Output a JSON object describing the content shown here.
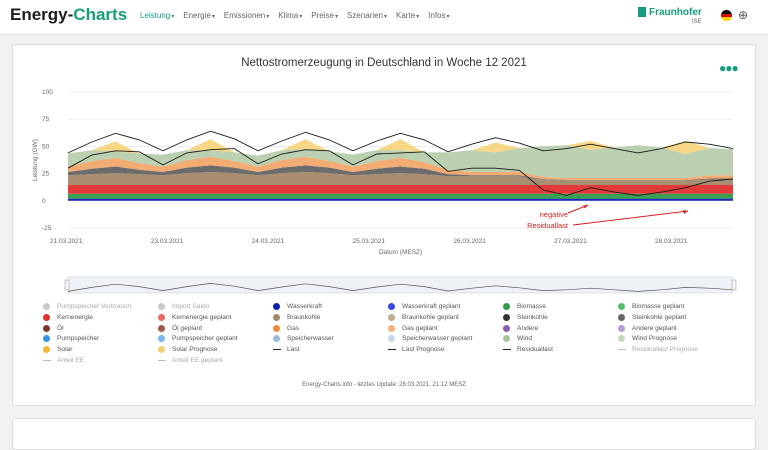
{
  "nav": {
    "brand_main": "Energy-",
    "brand_accent": "Charts",
    "items": [
      {
        "label": "Leistung",
        "active": true
      },
      {
        "label": "Energie",
        "active": false
      },
      {
        "label": "Emissionen",
        "active": false
      },
      {
        "label": "Klima",
        "active": false
      },
      {
        "label": "Preise",
        "active": false
      },
      {
        "label": "Szenarien",
        "active": false
      },
      {
        "label": "Karte",
        "active": false
      },
      {
        "label": "Infos",
        "active": false
      }
    ],
    "fraunhofer": "Fraunhofer",
    "fraunhofer_sub": "ISE",
    "accent_color": "#179c7d"
  },
  "footer_note": "Energy-Charts.info - letztes Update: 28.03.2021, 21:12 MESZ",
  "chart_data": {
    "type": "area",
    "title": "Nettostromerzeugung in Deutschland in Woche 12 2021",
    "xlabel": "Datum (MESZ)",
    "ylabel": "Leistung (GW)",
    "ylim": [
      -25,
      100
    ],
    "yticks": [
      -25,
      0,
      25,
      50,
      75,
      100
    ],
    "xticks": [
      "21.03.2021",
      "23.03.2021",
      "24.03.2021",
      "25.03.2021",
      "26.03.2021",
      "27.03.2021",
      "28.03.2021"
    ],
    "x_hours": [
      0,
      6,
      12,
      18,
      24,
      30,
      36,
      42,
      48,
      54,
      60,
      66,
      72,
      78,
      84,
      90,
      96,
      102,
      108,
      114,
      120,
      126,
      132,
      138,
      144,
      150,
      156,
      162,
      168
    ],
    "stacked_series": [
      {
        "name": "Wasserkraft",
        "color": "#0d1fb8",
        "values": [
          2,
          2,
          2,
          2,
          2,
          2,
          2,
          2,
          2,
          2,
          2,
          2,
          2,
          2,
          2,
          2,
          2,
          2,
          2,
          2,
          2,
          2,
          2,
          2,
          2,
          2,
          2,
          2,
          2
        ]
      },
      {
        "name": "Biomasse",
        "color": "#2e9a49",
        "values": [
          4.5,
          4.5,
          4.5,
          4.5,
          4.5,
          4.5,
          4.5,
          4.5,
          4.5,
          4.5,
          4.5,
          4.5,
          4.5,
          4.5,
          4.5,
          4.5,
          4.5,
          4.5,
          4.5,
          4.5,
          4.5,
          4.5,
          4.5,
          4.5,
          4.5,
          4.5,
          4.5,
          4.5,
          4.5
        ]
      },
      {
        "name": "Kernenergie",
        "color": "#e0302e",
        "values": [
          8,
          8,
          8,
          8,
          8,
          8,
          8,
          8,
          8,
          8,
          8,
          8,
          8,
          8,
          8,
          8,
          8,
          8,
          8,
          8,
          8,
          8,
          8,
          8,
          8,
          8,
          8,
          8,
          8
        ]
      },
      {
        "name": "Braunkohle",
        "color": "#a48869",
        "values": [
          9,
          10,
          11,
          10,
          9,
          11,
          12,
          11,
          9,
          11,
          12,
          11,
          9,
          10,
          11,
          10,
          8,
          8,
          8,
          8,
          5,
          4,
          4,
          4,
          4,
          4,
          4,
          5,
          5
        ]
      },
      {
        "name": "Steinkohle",
        "color": "#646464",
        "values": [
          3,
          5,
          6,
          4,
          3,
          5,
          6,
          5,
          3,
          5,
          6,
          5,
          3,
          5,
          6,
          5,
          2,
          1,
          1,
          1,
          0.5,
          0.5,
          0.5,
          0.5,
          0.5,
          0.5,
          0.5,
          1,
          1
        ]
      },
      {
        "name": "Gas",
        "color": "#f1a66a",
        "values": [
          5,
          7,
          8,
          6,
          5,
          7,
          8,
          6,
          5,
          7,
          8,
          6,
          5,
          7,
          8,
          6,
          4,
          3,
          3,
          3,
          2,
          2,
          2,
          2,
          2,
          2,
          2,
          3,
          3
        ]
      },
      {
        "name": "Wind",
        "color": "#b7ccad",
        "values": [
          12,
          10,
          6,
          9,
          11,
          9,
          6,
          8,
          10,
          9,
          7,
          9,
          11,
          10,
          7,
          9,
          16,
          20,
          18,
          22,
          28,
          30,
          26,
          28,
          30,
          28,
          22,
          25,
          24
        ]
      },
      {
        "name": "Solar",
        "color": "#f7d57e",
        "values": [
          0,
          0,
          9,
          0,
          0,
          0,
          10,
          0,
          0,
          0,
          9,
          0,
          0,
          0,
          10,
          0,
          0,
          0,
          9,
          0,
          0,
          0,
          8,
          0,
          0,
          0,
          12,
          0,
          0
        ]
      }
    ],
    "lines": [
      {
        "name": "Last",
        "color": "#1a1a1a",
        "values": [
          44,
          54,
          62,
          56,
          46,
          56,
          64,
          57,
          46,
          55,
          63,
          56,
          46,
          55,
          62,
          56,
          45,
          52,
          58,
          53,
          46,
          48,
          52,
          48,
          44,
          48,
          54,
          52,
          48
        ]
      },
      {
        "name": "Residuallast",
        "color": "#1a1a1a",
        "values": [
          30,
          42,
          46,
          45,
          33,
          44,
          47,
          48,
          34,
          43,
          47,
          46,
          33,
          43,
          44,
          45,
          27,
          30,
          30,
          28,
          10,
          5,
          12,
          8,
          5,
          8,
          12,
          18,
          20
        ]
      }
    ],
    "legend": [
      {
        "name": "Pumpspeicher Verbrauch",
        "color": "#c8c8c8",
        "kind": "dot",
        "faded": true
      },
      {
        "name": "Import Saldo",
        "color": "#c8c8c8",
        "kind": "dot",
        "faded": true
      },
      {
        "name": "Wasserkraft",
        "color": "#0d1fb8",
        "kind": "dot",
        "faded": false
      },
      {
        "name": "Wasserkraft geplant",
        "color": "#3b47e0",
        "kind": "dot",
        "faded": false
      },
      {
        "name": "Biomasse",
        "color": "#2e9a49",
        "kind": "dot",
        "faded": false
      },
      {
        "name": "Biomasse geplant",
        "color": "#55bb6a",
        "kind": "dot",
        "faded": false
      },
      {
        "name": "Kernenergie",
        "color": "#e0302e",
        "kind": "dot",
        "faded": false
      },
      {
        "name": "Kernenergie geplant",
        "color": "#ea6a63",
        "kind": "dot",
        "faded": false
      },
      {
        "name": "Braunkohle",
        "color": "#a48869",
        "kind": "dot",
        "faded": false
      },
      {
        "name": "Braunkohle geplant",
        "color": "#c2aa8a",
        "kind": "dot",
        "faded": false
      },
      {
        "name": "Steinkohle",
        "color": "#333333",
        "kind": "dot",
        "faded": false
      },
      {
        "name": "Steinkohle geplant",
        "color": "#666666",
        "kind": "dot",
        "faded": false
      },
      {
        "name": "Öl",
        "color": "#7b3a2a",
        "kind": "dot",
        "faded": false
      },
      {
        "name": "Öl geplant",
        "color": "#9e5a48",
        "kind": "dot",
        "faded": false
      },
      {
        "name": "Gas",
        "color": "#f18a3a",
        "kind": "dot",
        "faded": false
      },
      {
        "name": "Gas geplant",
        "color": "#f3b17a",
        "kind": "dot",
        "faded": false
      },
      {
        "name": "Andere",
        "color": "#8a5db3",
        "kind": "dot",
        "faded": false
      },
      {
        "name": "Andere geplant",
        "color": "#b79bd6",
        "kind": "dot",
        "faded": false
      },
      {
        "name": "Pumpspeicher",
        "color": "#3794e8",
        "kind": "dot",
        "faded": false
      },
      {
        "name": "Pumpspeicher geplant",
        "color": "#78b8f0",
        "kind": "dot",
        "faded": false
      },
      {
        "name": "Speicherwasser",
        "color": "#9fb9e6",
        "kind": "dot",
        "faded": false
      },
      {
        "name": "Speicherwasser geplant",
        "color": "#c9d6ef",
        "kind": "dot",
        "faded": false
      },
      {
        "name": "Wind",
        "color": "#a9c59d",
        "kind": "dot",
        "faded": false
      },
      {
        "name": "Wind Prognose",
        "color": "#c5d9bc",
        "kind": "dot",
        "faded": false
      },
      {
        "name": "Solar",
        "color": "#f2b531",
        "kind": "dot",
        "faded": false
      },
      {
        "name": "Solar Prognose",
        "color": "#f6cf75",
        "kind": "dot",
        "faded": false
      },
      {
        "name": "Last",
        "color": "#222222",
        "kind": "line",
        "faded": false
      },
      {
        "name": "Last Prognose",
        "color": "#222222",
        "kind": "line",
        "faded": false
      },
      {
        "name": "Residuallast",
        "color": "#222222",
        "kind": "line",
        "faded": false
      },
      {
        "name": "Residuallast Prognose",
        "color": "#bbbbbb",
        "kind": "line",
        "faded": true
      },
      {
        "name": "Anteil EE",
        "color": "#bbbbbb",
        "kind": "line",
        "faded": true
      },
      {
        "name": "Anteil EE geplant",
        "color": "#bbbbbb",
        "kind": "line",
        "faded": true
      }
    ],
    "annotation": {
      "line1": "negative",
      "line2": "Residuallast",
      "color": "#d42020"
    }
  }
}
